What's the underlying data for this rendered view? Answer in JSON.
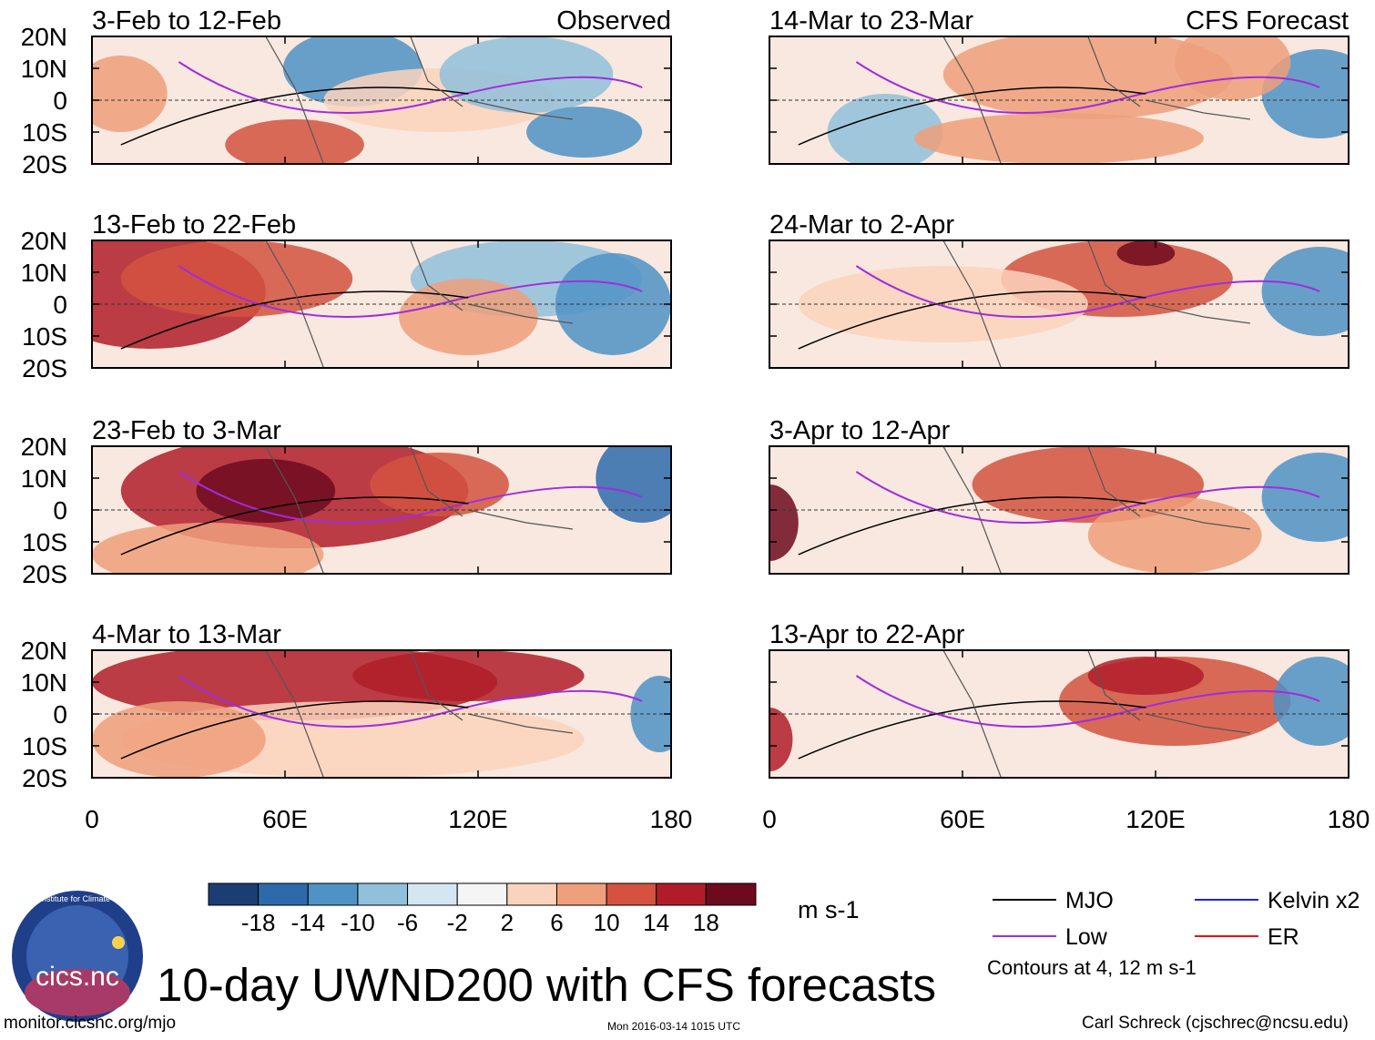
{
  "figure": {
    "title": "10-day UWND200 with CFS forecasts",
    "website": "monitor.cicsnc.org/mjo",
    "timestamp": "Mon 2016-03-14 1015 UTC",
    "author": "Carl Schreck (cjschrec@ncsu.edu)",
    "units": "m s-1",
    "contour_note": "Contours at 4, 12 m s-1",
    "logo_text": "cics.nc",
    "logo_ring_text": "Cooperative Institute for Climate and Satellites",
    "observed_label": "Observed",
    "forecast_label": "CFS Forecast"
  },
  "axes": {
    "lat_labels": [
      "20N",
      "10N",
      "0",
      "10S",
      "20S"
    ],
    "lon_labels": [
      "0",
      "60E",
      "120E",
      "180"
    ]
  },
  "panels": [
    {
      "period": "3-Feb to 12-Feb",
      "column": "observed"
    },
    {
      "period": "13-Feb to 22-Feb",
      "column": "observed"
    },
    {
      "period": "23-Feb to 3-Mar",
      "column": "observed"
    },
    {
      "period": "4-Mar to 13-Mar",
      "column": "observed"
    },
    {
      "period": "14-Mar to 23-Mar",
      "column": "forecast"
    },
    {
      "period": "24-Mar to 2-Apr",
      "column": "forecast"
    },
    {
      "period": "3-Apr to 12-Apr",
      "column": "forecast"
    },
    {
      "period": "13-Apr to 22-Apr",
      "column": "forecast"
    }
  ],
  "colorbar": {
    "ticks": [
      "-18",
      "-14",
      "-10",
      "-6",
      "-2",
      "2",
      "6",
      "10",
      "14",
      "18"
    ],
    "colors": [
      "#1b3d73",
      "#2e6aab",
      "#4f92c5",
      "#90c0dc",
      "#d4e6f1",
      "#f5f5f5",
      "#fbd3bd",
      "#ef9f7b",
      "#d4523f",
      "#b01d29",
      "#6d0a1e"
    ]
  },
  "legend": [
    {
      "label": "MJO",
      "color": "#000000"
    },
    {
      "label": "Kelvin x2",
      "color": "#1f1fe6"
    },
    {
      "label": "Low",
      "color": "#a12cde"
    },
    {
      "label": "ER",
      "color": "#e8110f"
    }
  ]
}
